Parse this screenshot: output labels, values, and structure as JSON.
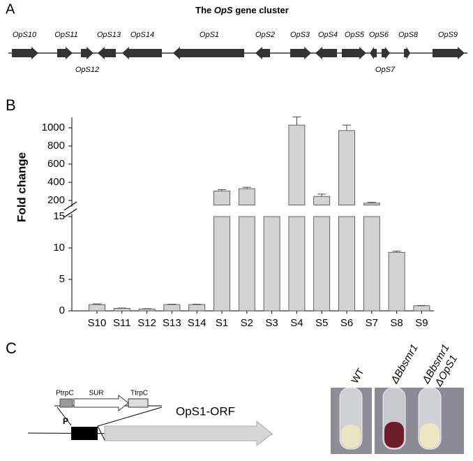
{
  "panel_labels": [
    "A",
    "B",
    "C"
  ],
  "gene_cluster": {
    "title": [
      "The ",
      "OpS",
      " gene cluster"
    ],
    "genes": [
      "OpS10",
      "OpS11",
      "OpS12",
      "OpS13",
      "OpS14",
      "OpS1",
      "OpS2",
      "OpS3",
      "OpS4",
      "OpS5",
      "OpS6",
      "OpS7",
      "OpS8",
      "OpS9"
    ]
  },
  "chart_data": {
    "type": "broken-bar",
    "y_label": "Fold change",
    "categories": [
      "S10",
      "S11",
      "S12",
      "S13",
      "S14",
      "S1",
      "S2",
      "S3",
      "S4",
      "S5",
      "S6",
      "S7",
      "S8",
      "S9"
    ],
    "values": [
      1.0,
      0.4,
      0.3,
      1.0,
      1.0,
      305,
      330,
      15,
      1030,
      245,
      970,
      170,
      9.3,
      0.8
    ],
    "errors": [
      0.1,
      0.05,
      0.05,
      0.05,
      0.05,
      15,
      15,
      0,
      90,
      25,
      60,
      10,
      0.2,
      0.05
    ],
    "color": "#d3d3d3",
    "ylim_lower": [
      0,
      15
    ],
    "yticks_lower": [
      0,
      5,
      10,
      15
    ],
    "ylim_upper": [
      150,
      1100
    ],
    "yticks_upper": [
      200,
      400,
      600,
      800,
      1000
    ]
  },
  "construct": {
    "labels": [
      "PtrpC",
      "SUR",
      "TtrpC",
      "P",
      "OpS1-ORF"
    ]
  },
  "photo": {
    "labels": [
      "WT",
      "ΔBbsmr1",
      "ΔBbsmr1",
      "ΔOpS1"
    ]
  }
}
